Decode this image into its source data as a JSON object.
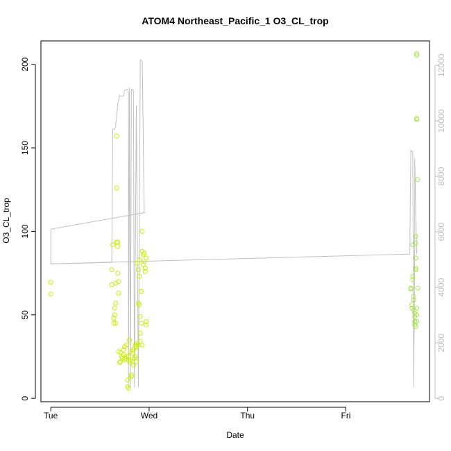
{
  "chart_data": {
    "type": "scatter",
    "title": "ATOM4 Northeast_Pacific_1 O3_CL_trop",
    "xlabel": "Date",
    "ylabel": "O3_CL_trop",
    "x_ticks": [
      "Tue",
      "Wed",
      "Thu",
      "Fri"
    ],
    "y_ticks": [
      "0",
      "50",
      "100",
      "150",
      "200"
    ],
    "y2_ticks": [
      "0",
      "2000",
      "4000",
      "6000",
      "8000",
      "10000",
      "12000"
    ],
    "xlim": [
      -0.1,
      3.85
    ],
    "ylim": [
      -2,
      214
    ],
    "y2lim": [
      -120,
      12880
    ],
    "colors": {
      "points": "#c8f000",
      "points_friday": "#a6e64a",
      "line": "#c0c0c0",
      "right_axis": "#bdbdbd"
    },
    "series": [
      {
        "kind": "points",
        "points": [
          [
            0.0,
            69.5
          ],
          [
            0.0,
            62.5
          ],
          [
            0.62,
            77
          ],
          [
            0.62,
            68
          ],
          [
            0.63,
            92
          ],
          [
            0.64,
            48
          ],
          [
            0.64,
            45
          ],
          [
            0.65,
            54
          ],
          [
            0.65,
            50
          ],
          [
            0.66,
            57
          ],
          [
            0.66,
            69
          ],
          [
            0.66,
            45
          ],
          [
            0.67,
            157
          ],
          [
            0.67,
            126
          ],
          [
            0.67,
            93.5
          ],
          [
            0.68,
            93.5
          ],
          [
            0.68,
            91
          ],
          [
            0.68,
            75
          ],
          [
            0.69,
            70
          ],
          [
            0.69,
            63
          ],
          [
            0.69,
            28
          ],
          [
            0.7,
            21.5
          ],
          [
            0.71,
            27.5
          ],
          [
            0.71,
            22
          ],
          [
            0.72,
            25
          ],
          [
            0.73,
            24
          ],
          [
            0.74,
            26
          ],
          [
            0.74,
            29
          ],
          [
            0.75,
            31
          ],
          [
            0.75,
            23
          ],
          [
            0.76,
            24
          ],
          [
            0.77,
            32
          ],
          [
            0.77,
            25
          ],
          [
            0.78,
            11
          ],
          [
            0.78,
            7
          ],
          [
            0.79,
            6
          ],
          [
            0.79,
            25
          ],
          [
            0.8,
            35
          ],
          [
            0.8,
            22
          ],
          [
            0.81,
            28
          ],
          [
            0.81,
            23
          ],
          [
            0.82,
            14
          ],
          [
            0.82,
            13
          ],
          [
            0.83,
            27
          ],
          [
            0.83,
            22
          ],
          [
            0.84,
            20
          ],
          [
            0.84,
            29
          ],
          [
            0.85,
            24
          ],
          [
            0.85,
            30
          ],
          [
            0.86,
            32
          ],
          [
            0.86,
            25
          ],
          [
            0.87,
            31
          ],
          [
            0.87,
            22
          ],
          [
            0.88,
            33
          ],
          [
            0.88,
            81
          ],
          [
            0.89,
            77
          ],
          [
            0.89,
            57
          ],
          [
            0.89,
            32
          ],
          [
            0.9,
            83
          ],
          [
            0.9,
            73
          ],
          [
            0.9,
            56
          ],
          [
            0.91,
            34
          ],
          [
            0.91,
            49
          ],
          [
            0.91,
            39
          ],
          [
            0.92,
            64
          ],
          [
            0.92,
            64
          ],
          [
            0.92,
            45
          ],
          [
            0.93,
            100
          ],
          [
            0.93,
            88
          ],
          [
            0.93,
            32
          ],
          [
            0.94,
            86
          ],
          [
            0.94,
            80
          ],
          [
            0.95,
            82
          ],
          [
            0.95,
            87
          ],
          [
            0.96,
            76
          ],
          [
            0.96,
            78
          ],
          [
            0.97,
            84
          ],
          [
            0.97,
            44
          ],
          [
            0.97,
            46
          ]
        ]
      },
      {
        "kind": "points",
        "points": [
          [
            3.66,
            66
          ],
          [
            3.66,
            65.5
          ],
          [
            3.67,
            56
          ],
          [
            3.67,
            54
          ],
          [
            3.68,
            73
          ],
          [
            3.68,
            71
          ],
          [
            3.68,
            92
          ],
          [
            3.69,
            61
          ],
          [
            3.69,
            59
          ],
          [
            3.69,
            53
          ],
          [
            3.7,
            51
          ],
          [
            3.7,
            49
          ],
          [
            3.7,
            46
          ],
          [
            3.7,
            44
          ],
          [
            3.71,
            97
          ],
          [
            3.71,
            93
          ],
          [
            3.71,
            84
          ],
          [
            3.71,
            78
          ],
          [
            3.71,
            77
          ],
          [
            3.72,
            206.5
          ],
          [
            3.72,
            205.5
          ],
          [
            3.72,
            167.5
          ],
          [
            3.72,
            167
          ],
          [
            3.73,
            131
          ],
          [
            3.72,
            54
          ],
          [
            3.72,
            50
          ],
          [
            3.73,
            66
          ],
          [
            3.72,
            46
          ],
          [
            3.71,
            43
          ]
        ]
      },
      {
        "kind": "line",
        "axis": "right",
        "points": [
          [
            0.0,
            6100
          ],
          [
            0.0,
            4850
          ],
          [
            0.62,
            4900
          ],
          [
            0.63,
            9700
          ],
          [
            0.65,
            9700
          ],
          [
            0.66,
            9800
          ],
          [
            0.68,
            10600
          ],
          [
            0.7,
            10900
          ],
          [
            0.74,
            10900
          ],
          [
            0.75,
            11100
          ],
          [
            0.78,
            11150
          ],
          [
            0.79,
            11000
          ],
          [
            0.79,
            400
          ],
          [
            0.8,
            11200
          ],
          [
            0.81,
            400
          ],
          [
            0.82,
            11150
          ],
          [
            0.84,
            11100
          ],
          [
            0.85,
            400
          ],
          [
            0.87,
            10550
          ],
          [
            0.89,
            400
          ],
          [
            0.91,
            12200
          ],
          [
            0.93,
            12150
          ],
          [
            0.95,
            6700
          ],
          [
            0.96,
            6700
          ],
          [
            0.0,
            6100
          ]
        ]
      },
      {
        "kind": "line",
        "axis": "right",
        "points": [
          [
            0.0,
            4850
          ],
          [
            3.65,
            5200
          ],
          [
            3.66,
            8950
          ],
          [
            3.68,
            8850
          ],
          [
            3.69,
            400
          ],
          [
            3.7,
            5500
          ],
          [
            3.7,
            8650
          ],
          [
            3.72,
            5200
          ]
        ]
      }
    ]
  }
}
